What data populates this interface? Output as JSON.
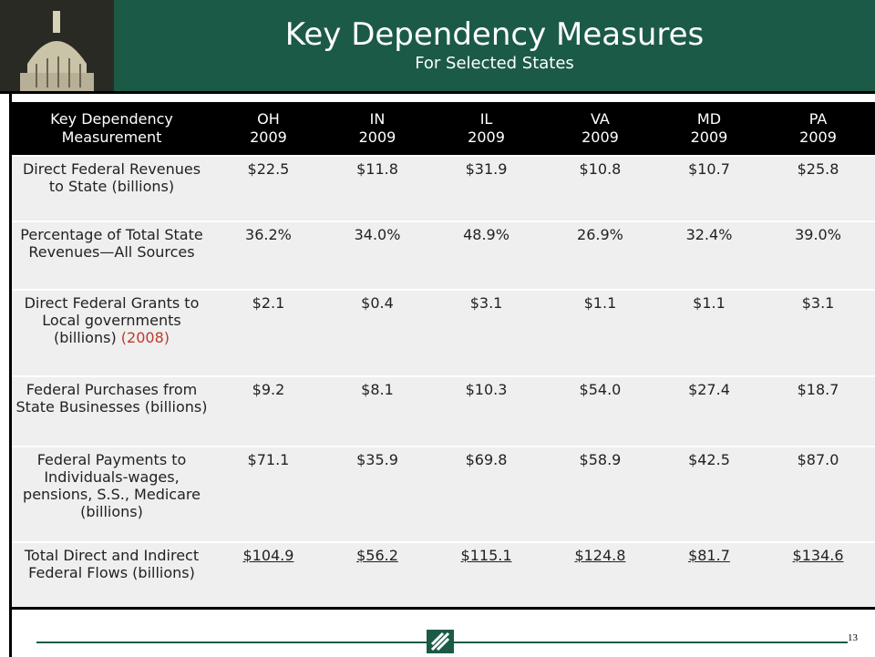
{
  "header": {
    "title": "Key Dependency Measures",
    "subtitle": "For Selected States"
  },
  "table": {
    "corner": "Key Dependency Measurement",
    "columns": [
      {
        "state": "OH",
        "year": "2009"
      },
      {
        "state": "IN",
        "year": "2009"
      },
      {
        "state": "IL",
        "year": "2009"
      },
      {
        "state": "VA",
        "year": "2009"
      },
      {
        "state": "MD",
        "year": "2009"
      },
      {
        "state": "PA",
        "year": "2009"
      }
    ],
    "rows": [
      {
        "label": "Direct Federal Revenues to State (billions)",
        "values": [
          "$22.5",
          "$11.8",
          "$31.9",
          "$10.8",
          "$10.7",
          "$25.8"
        ]
      },
      {
        "label": "Percentage of Total State Revenues—All Sources",
        "values": [
          "36.2%",
          "34.0%",
          "48.9%",
          "26.9%",
          "32.4%",
          "39.0%"
        ]
      },
      {
        "label": "Direct Federal Grants to Local governments (billions)",
        "note": "(2008)",
        "values": [
          "$2.1",
          "$0.4",
          "$3.1",
          "$1.1",
          "$1.1",
          "$3.1"
        ]
      },
      {
        "label": "Federal Purchases from State Businesses (billions)",
        "values": [
          "$9.2",
          "$8.1",
          "$10.3",
          "$54.0",
          "$27.4",
          "$18.7"
        ]
      },
      {
        "label": "Federal Payments to Individuals-wages, pensions, S.S., Medicare (billions)",
        "values": [
          "$71.1",
          "$35.9",
          "$69.8",
          "$58.9",
          "$42.5",
          "$87.0"
        ]
      },
      {
        "label": "Total Direct and Indirect Federal Flows (billions)",
        "values": [
          "$104.9",
          "$56.2",
          "$115.1",
          "$124.8",
          "$81.7",
          "$134.6"
        ]
      }
    ]
  },
  "footer": {
    "page": "13"
  }
}
